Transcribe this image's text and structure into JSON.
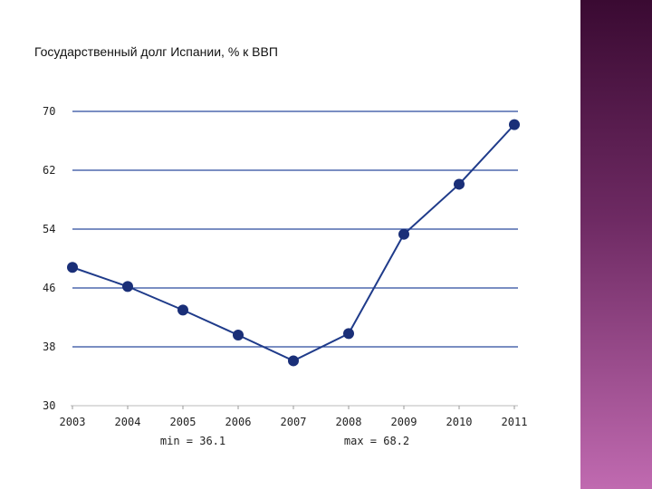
{
  "slide": {
    "title": "Государственный долг Испании, % к ВВП"
  },
  "colors": {
    "line": "#1f3b8a",
    "marker": "#1a2f78",
    "grid": "#2b4a9e",
    "sidebar_top": "#3a0a32",
    "sidebar_bottom": "#c06ab0"
  },
  "chart_data": {
    "type": "line",
    "title": "",
    "xlabel": "",
    "ylabel": "",
    "ylim": [
      30,
      70
    ],
    "yticks": [
      30,
      38,
      46,
      54,
      62,
      70
    ],
    "grid": true,
    "x": [
      "2003",
      "2004",
      "2005",
      "2006",
      "2007",
      "2008",
      "2009",
      "2010",
      "2011"
    ],
    "series": [
      {
        "values": [
          48.8,
          46.2,
          43.0,
          39.6,
          36.1,
          39.8,
          53.3,
          60.1,
          68.2
        ]
      }
    ],
    "annotations": {
      "min_label": "min = 36.1",
      "max_label": "max = 68.2"
    }
  }
}
